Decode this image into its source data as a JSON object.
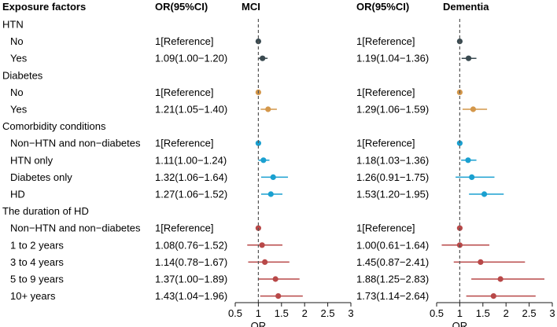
{
  "chart_data": {
    "type": "forest",
    "headers": {
      "factor": "Exposure factors",
      "or_mci": "OR(95%CI)",
      "panel_mci": "MCI",
      "or_dem": "OR(95%CI)",
      "panel_dem": "Dementia"
    },
    "xlabel": "OR",
    "reference_line": 1,
    "xlim": [
      0.5,
      3
    ],
    "xticks": [
      0.5,
      1,
      1.5,
      2,
      2.5,
      3
    ],
    "xtick_labels": [
      "0.5",
      "1",
      "1.5",
      "2",
      "2.5",
      "3"
    ],
    "colors": {
      "HTN": "#3a4a50",
      "Diabetes": "#d4974a",
      "Comorbidity": "#1aa0d0",
      "Duration": "#b84848",
      "axis": "#1a1a1a",
      "refline": "#555555"
    },
    "rows": [
      {
        "kind": "group",
        "label": "HTN"
      },
      {
        "kind": "item",
        "label": "No",
        "group": "HTN",
        "mci": {
          "text": "1[Reference]",
          "or": 1,
          "lo": 1,
          "hi": 1
        },
        "dem": {
          "text": "1[Reference]",
          "or": 1,
          "lo": 1,
          "hi": 1
        }
      },
      {
        "kind": "item",
        "label": "Yes",
        "group": "HTN",
        "mci": {
          "text": "1.09(1.00−1.20)",
          "or": 1.09,
          "lo": 1.0,
          "hi": 1.2
        },
        "dem": {
          "text": "1.19(1.04−1.36)",
          "or": 1.19,
          "lo": 1.04,
          "hi": 1.36
        }
      },
      {
        "kind": "group",
        "label": "Diabetes"
      },
      {
        "kind": "item",
        "label": "No",
        "group": "Diabetes",
        "mci": {
          "text": "1[Reference]",
          "or": 1,
          "lo": 1,
          "hi": 1
        },
        "dem": {
          "text": "1[Reference]",
          "or": 1,
          "lo": 1,
          "hi": 1
        }
      },
      {
        "kind": "item",
        "label": "Yes",
        "group": "Diabetes",
        "mci": {
          "text": "1.21(1.05−1.40)",
          "or": 1.21,
          "lo": 1.05,
          "hi": 1.4
        },
        "dem": {
          "text": "1.29(1.06−1.59)",
          "or": 1.29,
          "lo": 1.06,
          "hi": 1.59
        }
      },
      {
        "kind": "group",
        "label": "Comorbidity conditions"
      },
      {
        "kind": "item",
        "label": "Non−HTN and non−diabetes",
        "group": "Comorbidity",
        "mci": {
          "text": "1[Reference]",
          "or": 1,
          "lo": 1,
          "hi": 1
        },
        "dem": {
          "text": "1[Reference]",
          "or": 1,
          "lo": 1,
          "hi": 1
        }
      },
      {
        "kind": "item",
        "label": "HTN only",
        "group": "Comorbidity",
        "mci": {
          "text": "1.11(1.00−1.24)",
          "or": 1.11,
          "lo": 1.0,
          "hi": 1.24
        },
        "dem": {
          "text": "1.18(1.03−1.36)",
          "or": 1.18,
          "lo": 1.03,
          "hi": 1.36
        }
      },
      {
        "kind": "item",
        "label": "Diabetes only",
        "group": "Comorbidity",
        "mci": {
          "text": "1.32(1.06−1.64)",
          "or": 1.32,
          "lo": 1.06,
          "hi": 1.64
        },
        "dem": {
          "text": "1.26(0.91−1.75)",
          "or": 1.26,
          "lo": 0.91,
          "hi": 1.75
        }
      },
      {
        "kind": "item",
        "label": "HD",
        "group": "Comorbidity",
        "mci": {
          "text": "1.27(1.06−1.52)",
          "or": 1.27,
          "lo": 1.06,
          "hi": 1.52
        },
        "dem": {
          "text": "1.53(1.20−1.95)",
          "or": 1.53,
          "lo": 1.2,
          "hi": 1.95
        }
      },
      {
        "kind": "group",
        "label": "The duration of HD"
      },
      {
        "kind": "item",
        "label": "Non−HTN and non−diabetes",
        "group": "Duration",
        "mci": {
          "text": "1[Reference]",
          "or": 1,
          "lo": 1,
          "hi": 1
        },
        "dem": {
          "text": "1[Reference]",
          "or": 1,
          "lo": 1,
          "hi": 1
        }
      },
      {
        "kind": "item",
        "label": "1 to 2 years",
        "group": "Duration",
        "mci": {
          "text": "1.08(0.76−1.52)",
          "or": 1.08,
          "lo": 0.76,
          "hi": 1.52
        },
        "dem": {
          "text": "1.00(0.61−1.64)",
          "or": 1.0,
          "lo": 0.61,
          "hi": 1.64
        }
      },
      {
        "kind": "item",
        "label": "3 to 4 years",
        "group": "Duration",
        "mci": {
          "text": "1.14(0.78−1.67)",
          "or": 1.14,
          "lo": 0.78,
          "hi": 1.67
        },
        "dem": {
          "text": "1.45(0.87−2.41)",
          "or": 1.45,
          "lo": 0.87,
          "hi": 2.41
        }
      },
      {
        "kind": "item",
        "label": "5 to 9 years",
        "group": "Duration",
        "mci": {
          "text": "1.37(1.00−1.89)",
          "or": 1.37,
          "lo": 1.0,
          "hi": 1.89
        },
        "dem": {
          "text": "1.88(1.25−2.83)",
          "or": 1.88,
          "lo": 1.25,
          "hi": 2.83
        }
      },
      {
        "kind": "item",
        "label": "10+ years",
        "group": "Duration",
        "mci": {
          "text": "1.43(1.04−1.96)",
          "or": 1.43,
          "lo": 1.04,
          "hi": 1.96
        },
        "dem": {
          "text": "1.73(1.14−2.64)",
          "or": 1.73,
          "lo": 1.14,
          "hi": 2.64
        }
      }
    ]
  }
}
